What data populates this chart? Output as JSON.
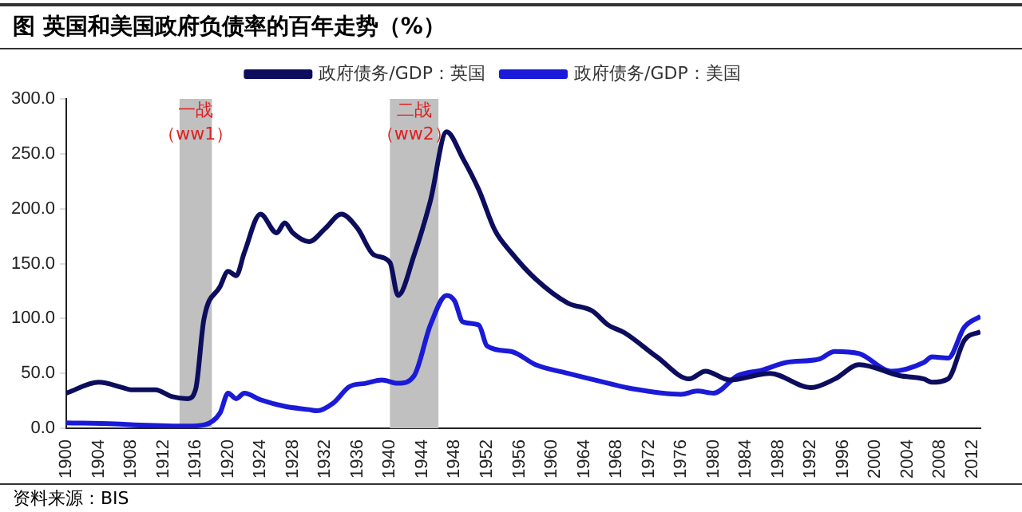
{
  "chart_data": {
    "type": "line",
    "title": "图  英国和美国政府负债率的百年走势（%）",
    "annotations": [
      "资料来源：BIS"
    ],
    "legend": "top",
    "grid": false,
    "marker": "none",
    "line_style": "solid",
    "xlim": [
      1900,
      2013
    ],
    "xticks": [
      1900,
      1904,
      1908,
      1912,
      1916,
      1920,
      1924,
      1928,
      1932,
      1936,
      1940,
      1944,
      1948,
      1952,
      1956,
      1960,
      1964,
      1968,
      1972,
      1976,
      1980,
      1984,
      1988,
      1992,
      1996,
      2000,
      2004,
      2008,
      2012
    ],
    "ylim": [
      0,
      300
    ],
    "yticks": [
      {
        "value": 0,
        "label": "0.0"
      },
      {
        "value": 50,
        "label": "50.0"
      },
      {
        "value": 100,
        "label": "100.0"
      },
      {
        "value": 150,
        "label": "150.0"
      },
      {
        "value": 200,
        "label": "200.0"
      },
      {
        "value": 250,
        "label": "250.0"
      },
      {
        "value": 300,
        "label": "300.0"
      }
    ],
    "bands": [
      {
        "axis": "x",
        "from": 1914,
        "to": 1918,
        "label": "一战（ww1）",
        "color": "#c0c0c0"
      },
      {
        "axis": "x",
        "from": 1940,
        "to": 1946,
        "label": "二战（ww2）",
        "color": "#c0c0c0"
      }
    ],
    "series": [
      {
        "name": "政府债务/GDP：英国",
        "color": "#0d0d5e",
        "x": [
          1900,
          1904,
          1907,
          1908,
          1911,
          1913,
          1915,
          1916,
          1917,
          1919,
          1920,
          1921,
          1922,
          1924,
          1926,
          1927,
          1928,
          1930,
          1932,
          1934,
          1936,
          1938,
          1940,
          1941,
          1943,
          1945,
          1947,
          1949,
          1951,
          1953,
          1955,
          1958,
          1962,
          1965,
          1967,
          1969,
          1973,
          1977,
          1979,
          1982,
          1987,
          1992,
          1995,
          1998,
          2003,
          2006,
          2007,
          2009,
          2011,
          2013
        ],
        "values": [
          32,
          42,
          37,
          35,
          35,
          29,
          27,
          36,
          99,
          129,
          143,
          139,
          160,
          195,
          178,
          187,
          178,
          170,
          182,
          195,
          182,
          158,
          151,
          121,
          158,
          207,
          270,
          246,
          217,
          180,
          160,
          136,
          114,
          107,
          94,
          87,
          65,
          45,
          52,
          44,
          50,
          37,
          45,
          58,
          48,
          45,
          42,
          45,
          80,
          88
        ]
      },
      {
        "name": "政府债务/GDP：美国",
        "color": "#1a1ad8",
        "x": [
          1900,
          1906,
          1909,
          1915,
          1917,
          1919,
          1920,
          1921,
          1922,
          1924,
          1927,
          1930,
          1931,
          1933,
          1935,
          1937,
          1939,
          1941,
          1943,
          1945,
          1947,
          1948,
          1949,
          1951,
          1952,
          1955,
          1958,
          1962,
          1967,
          1970,
          1976,
          1978,
          1980,
          1983,
          1986,
          1989,
          1993,
          1995,
          1998,
          2002,
          2006,
          2007,
          2009,
          2011,
          2013
        ],
        "values": [
          5,
          4,
          3,
          2,
          3,
          14,
          32,
          27,
          32,
          26,
          20,
          17,
          16,
          23,
          38,
          41,
          44,
          41,
          48,
          94,
          121,
          116,
          97,
          94,
          75,
          70,
          58,
          50,
          41,
          36,
          31,
          34,
          32,
          48,
          53,
          60,
          63,
          70,
          68,
          52,
          60,
          65,
          64,
          92,
          102
        ]
      }
    ]
  }
}
